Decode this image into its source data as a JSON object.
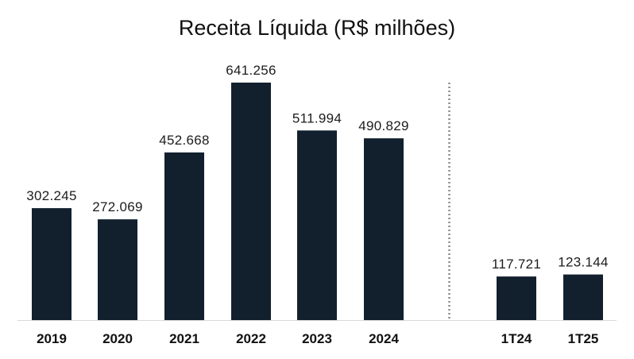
{
  "chart_data": {
    "type": "bar",
    "title": "Receita Líquida (R$ milhões)",
    "xlabel": "",
    "ylabel": "",
    "categories": [
      "2019",
      "2020",
      "2021",
      "2022",
      "2023",
      "2024",
      "1T24",
      "1T25"
    ],
    "values": [
      302245,
      272069,
      452668,
      641256,
      511994,
      490829,
      117721,
      123144
    ],
    "value_labels": [
      "302.245",
      "272.069",
      "452.668",
      "641.256",
      "511.994",
      "490.829",
      "117.721",
      "123.144"
    ],
    "ylim": [
      0,
      641256
    ],
    "grid": false,
    "legend": "none",
    "separator_after_index": 5,
    "colors": {
      "bar": "#12202e",
      "separator": "#8a8a8a",
      "axis": "#d9d9d9"
    }
  }
}
